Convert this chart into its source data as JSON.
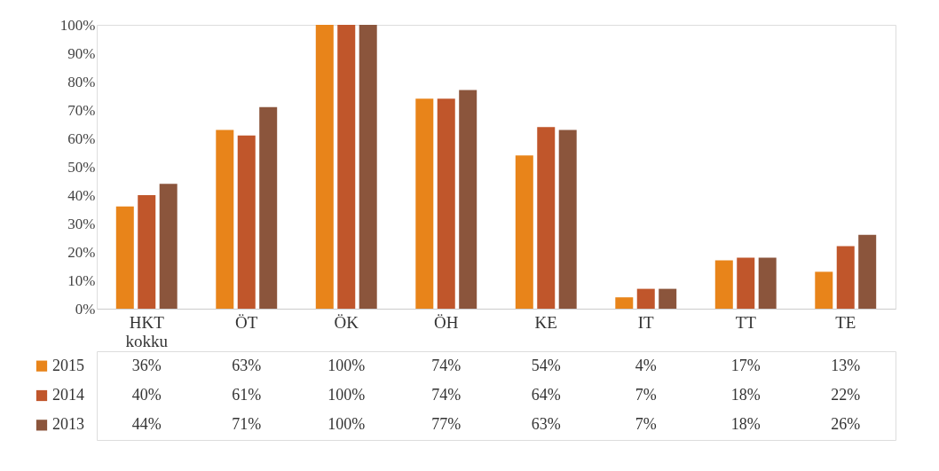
{
  "chart_data": {
    "type": "bar",
    "categories": [
      "HKT kokku",
      "ÖT",
      "ÖK",
      "ÖH",
      "KE",
      "IT",
      "TT",
      "TE"
    ],
    "series": [
      {
        "name": "2015",
        "color": "#e8841a",
        "values": [
          36,
          63,
          100,
          74,
          54,
          4,
          17,
          13
        ],
        "value_labels": [
          "36%",
          "63%",
          "100%",
          "74%",
          "54%",
          "4%",
          "17%",
          "13%"
        ]
      },
      {
        "name": "2014",
        "color": "#c0562b",
        "values": [
          40,
          61,
          100,
          74,
          64,
          7,
          18,
          22
        ],
        "value_labels": [
          "40%",
          "61%",
          "100%",
          "74%",
          "64%",
          "7%",
          "18%",
          "22%"
        ]
      },
      {
        "name": "2013",
        "color": "#8b553c",
        "values": [
          44,
          71,
          100,
          77,
          63,
          7,
          18,
          26
        ],
        "value_labels": [
          "44%",
          "71%",
          "100%",
          "77%",
          "63%",
          "7%",
          "18%",
          "26%"
        ]
      }
    ],
    "ylim": [
      0,
      100
    ],
    "yticks": [
      {
        "value": 0,
        "label": "0%"
      },
      {
        "value": 10,
        "label": "10%"
      },
      {
        "value": 20,
        "label": "20%"
      },
      {
        "value": 30,
        "label": "30%"
      },
      {
        "value": 40,
        "label": "40%"
      },
      {
        "value": 50,
        "label": "50%"
      },
      {
        "value": 60,
        "label": "60%"
      },
      {
        "value": 70,
        "label": "70%"
      },
      {
        "value": 80,
        "label": "80%"
      },
      {
        "value": 90,
        "label": "90%"
      },
      {
        "value": 100,
        "label": "100%"
      }
    ],
    "grid": false,
    "legend": "bottom"
  }
}
